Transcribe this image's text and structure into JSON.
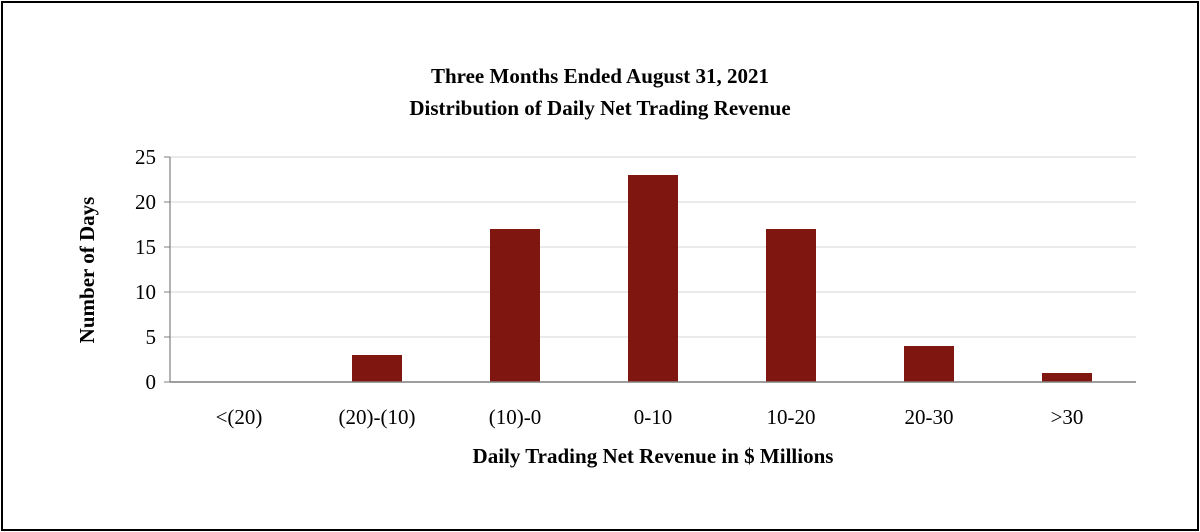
{
  "chart_data": {
    "type": "bar",
    "title": "Three Months Ended August 31, 2021",
    "subtitle": "Distribution of Daily Net Trading Revenue",
    "xlabel": "Daily Trading Net Revenue in $ Millions",
    "ylabel": "Number of Days",
    "categories": [
      "<(20)",
      "(20)-(10)",
      "(10)-0",
      "0-10",
      "10-20",
      "20-30",
      ">30"
    ],
    "values": [
      0,
      3,
      17,
      23,
      17,
      4,
      1
    ],
    "ylim": [
      0,
      25
    ],
    "yticks": [
      0,
      5,
      10,
      15,
      20,
      25
    ],
    "grid": true,
    "bar_color": "#7f1710",
    "grid_color": "#e3e3e3",
    "axis_color": "#7f7f7f"
  }
}
